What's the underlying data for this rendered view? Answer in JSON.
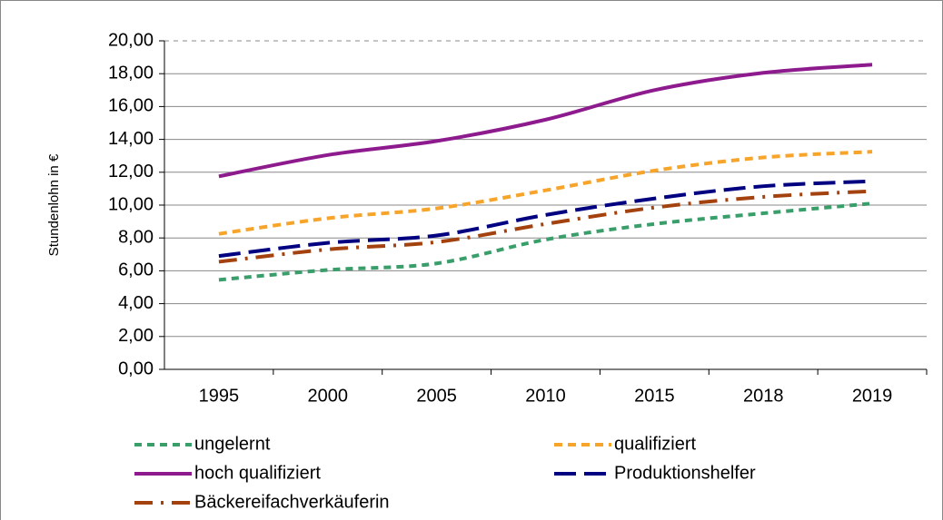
{
  "chart_data": {
    "type": "line",
    "ylabel": "Stundenlohn in €",
    "categories": [
      "1995",
      "2000",
      "2005",
      "2010",
      "2015",
      "2018",
      "2019"
    ],
    "series": [
      {
        "name": "ungelernt",
        "color": "#3a9e6b",
        "values": [
          5.45,
          6.05,
          6.45,
          7.9,
          8.85,
          9.5,
          10.1
        ]
      },
      {
        "name": "qualifiziert",
        "color": "#f7a42b",
        "values": [
          8.25,
          9.2,
          9.8,
          10.9,
          12.1,
          12.9,
          13.25
        ]
      },
      {
        "name": "hoch qualifiziert",
        "color": "#8e1b8e",
        "values": [
          11.75,
          13.05,
          13.9,
          15.2,
          17.0,
          18.05,
          18.55
        ]
      },
      {
        "name": "Produktionshelfer",
        "color": "#000080",
        "values": [
          6.9,
          7.7,
          8.15,
          9.4,
          10.4,
          11.15,
          11.45
        ]
      },
      {
        "name": "Bäckereifachverkäuferin",
        "color": "#a3420f",
        "values": [
          6.55,
          7.3,
          7.75,
          8.85,
          9.85,
          10.5,
          10.85
        ]
      }
    ],
    "ylim": [
      0,
      20
    ],
    "yticks": [
      {
        "value": 0,
        "label": "0,00"
      },
      {
        "value": 2,
        "label": "2,00"
      },
      {
        "value": 4,
        "label": "4,00"
      },
      {
        "value": 6,
        "label": "6,00"
      },
      {
        "value": 8,
        "label": "8,00"
      },
      {
        "value": 10,
        "label": "10,00"
      },
      {
        "value": 12,
        "label": "12,00"
      },
      {
        "value": 14,
        "label": "14,00"
      },
      {
        "value": 16,
        "label": "16,00"
      },
      {
        "value": 18,
        "label": "18,00"
      },
      {
        "value": 20,
        "label": "20,00"
      }
    ],
    "grid": true
  }
}
